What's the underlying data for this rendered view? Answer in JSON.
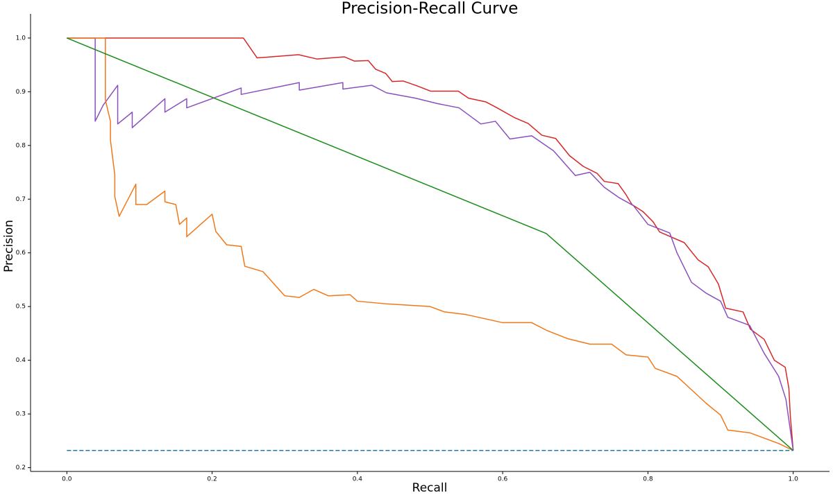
{
  "chart_data": {
    "type": "line",
    "title": "Precision-Recall Curve",
    "x_label": "Recall",
    "y_label": "Precision",
    "xlim": [
      -0.05,
      1.05
    ],
    "ylim": [
      0.193,
      1.045
    ],
    "xticks": [
      {
        "value": 0,
        "label": "0.0"
      },
      0.2,
      0.4,
      0.6,
      0.8,
      {
        "value": 1,
        "label": "1.0"
      }
    ],
    "yticks": [
      0.2,
      0.3,
      0.4,
      0.5,
      0.6,
      0.7,
      0.8,
      0.9,
      {
        "value": 1,
        "label": "1.0"
      }
    ],
    "grid": false,
    "series": [
      {
        "color": "#d62728",
        "dashed": false,
        "x": [
          0,
          0.243,
          0.262,
          0.319,
          0.344,
          0.382,
          0.396,
          0.415,
          0.425,
          0.439,
          0.448,
          0.463,
          0.482,
          0.501,
          0.539,
          0.553,
          0.577,
          0.591,
          0.616,
          0.635,
          0.654,
          0.673,
          0.692,
          0.711,
          0.73,
          0.74,
          0.759,
          0.769,
          0.778,
          0.793,
          0.807,
          0.816,
          0.85,
          0.869,
          0.883,
          0.897,
          0.907,
          0.931,
          0.941,
          0.96,
          0.974,
          0.989,
          0.994,
          0.996,
          1.0
        ],
        "values": [
          1.0,
          1.0,
          0.963,
          0.969,
          0.961,
          0.965,
          0.957,
          0.958,
          0.942,
          0.934,
          0.919,
          0.92,
          0.911,
          0.901,
          0.901,
          0.888,
          0.881,
          0.871,
          0.852,
          0.841,
          0.819,
          0.813,
          0.781,
          0.761,
          0.748,
          0.733,
          0.729,
          0.71,
          0.69,
          0.677,
          0.658,
          0.639,
          0.619,
          0.587,
          0.574,
          0.542,
          0.497,
          0.49,
          0.458,
          0.439,
          0.4,
          0.387,
          0.348,
          0.297,
          0.232
        ]
      },
      {
        "color": "#8a4fbf",
        "dashed": false,
        "x": [
          0,
          0.039,
          0.039,
          0.05,
          0.07,
          0.07,
          0.09,
          0.09,
          0.135,
          0.135,
          0.165,
          0.165,
          0.24,
          0.24,
          0.32,
          0.32,
          0.38,
          0.38,
          0.42,
          0.44,
          0.48,
          0.51,
          0.54,
          0.57,
          0.59,
          0.61,
          0.64,
          0.67,
          0.7,
          0.72,
          0.74,
          0.76,
          0.78,
          0.8,
          0.83,
          0.84,
          0.86,
          0.88,
          0.9,
          0.91,
          0.94,
          0.96,
          0.98,
          0.99,
          1.0
        ],
        "values": [
          1.0,
          1.0,
          0.845,
          0.875,
          0.912,
          0.84,
          0.862,
          0.833,
          0.887,
          0.862,
          0.887,
          0.87,
          0.907,
          0.895,
          0.917,
          0.903,
          0.917,
          0.905,
          0.912,
          0.898,
          0.888,
          0.878,
          0.87,
          0.84,
          0.845,
          0.812,
          0.818,
          0.79,
          0.744,
          0.75,
          0.722,
          0.703,
          0.688,
          0.653,
          0.637,
          0.6,
          0.545,
          0.525,
          0.51,
          0.48,
          0.465,
          0.413,
          0.37,
          0.327,
          0.232
        ]
      },
      {
        "color": "#f07818",
        "dashed": false,
        "x": [
          0,
          0.053,
          0.053,
          0.06,
          0.06,
          0.066,
          0.066,
          0.072,
          0.095,
          0.095,
          0.11,
          0.135,
          0.135,
          0.15,
          0.155,
          0.165,
          0.165,
          0.2,
          0.205,
          0.22,
          0.24,
          0.245,
          0.27,
          0.3,
          0.32,
          0.34,
          0.36,
          0.39,
          0.4,
          0.44,
          0.5,
          0.52,
          0.55,
          0.6,
          0.64,
          0.66,
          0.69,
          0.72,
          0.75,
          0.77,
          0.8,
          0.81,
          0.84,
          0.86,
          0.88,
          0.9,
          0.91,
          0.94,
          0.96,
          0.98,
          1.0
        ],
        "values": [
          1.0,
          1.0,
          0.885,
          0.845,
          0.81,
          0.745,
          0.705,
          0.668,
          0.728,
          0.69,
          0.69,
          0.715,
          0.695,
          0.69,
          0.653,
          0.665,
          0.63,
          0.672,
          0.64,
          0.615,
          0.612,
          0.575,
          0.565,
          0.52,
          0.517,
          0.532,
          0.52,
          0.522,
          0.51,
          0.505,
          0.5,
          0.49,
          0.485,
          0.47,
          0.47,
          0.456,
          0.44,
          0.43,
          0.43,
          0.41,
          0.406,
          0.385,
          0.37,
          0.345,
          0.32,
          0.298,
          0.27,
          0.265,
          0.255,
          0.245,
          0.232
        ]
      },
      {
        "color": "#1a8c1a",
        "dashed": false,
        "x": [
          0,
          0.66,
          1.0
        ],
        "values": [
          1.0,
          0.636,
          0.232
        ]
      },
      {
        "color": "#1f77b4",
        "dashed": true,
        "x": [
          0,
          1.0
        ],
        "values": [
          0.232,
          0.232
        ]
      }
    ]
  }
}
